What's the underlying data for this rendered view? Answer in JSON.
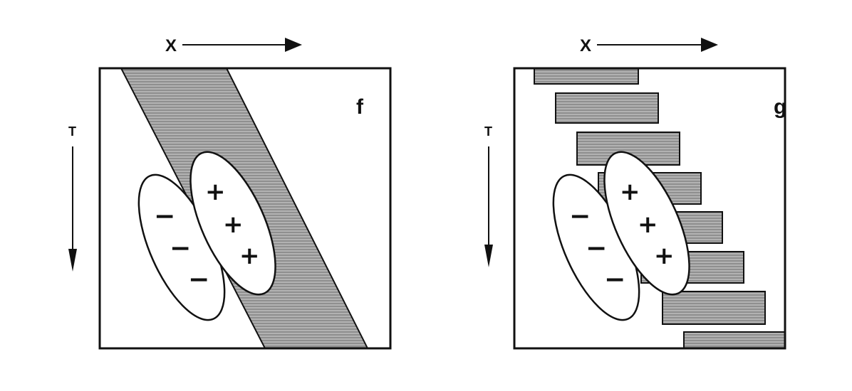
{
  "panels": [
    {
      "id": "f",
      "panel_label": "f",
      "x_axis_label": "X",
      "t_axis_label": "T",
      "negative_signs": [
        "−",
        "−",
        "−"
      ],
      "positive_signs": [
        "+",
        "+",
        "+"
      ]
    },
    {
      "id": "g",
      "panel_label": "g",
      "x_axis_label": "X",
      "t_axis_label": "T",
      "negative_signs": [
        "−",
        "−",
        "−"
      ],
      "positive_signs": [
        "+",
        "+",
        "+"
      ]
    }
  ],
  "colors": {
    "band_fill": "#8f8f8f",
    "band_hatch": "#d4d4d4",
    "ink": "#111111",
    "background": "#ffffff"
  }
}
